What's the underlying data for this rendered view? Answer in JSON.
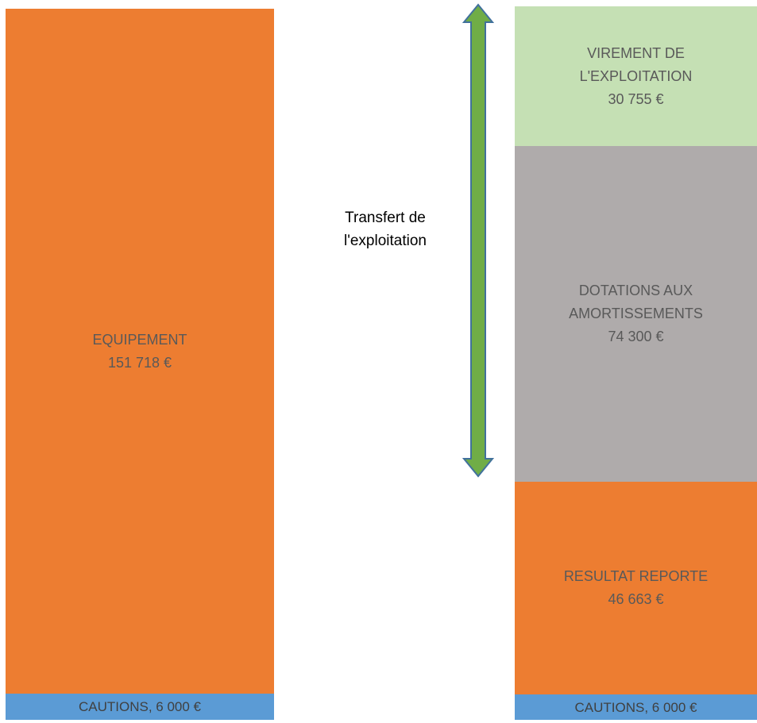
{
  "left_column": {
    "equipement": {
      "label": "EQUIPEMENT",
      "value": "151 718 €"
    },
    "cautions": {
      "text": "CAUTIONS, 6 000 €"
    }
  },
  "right_column": {
    "virement": {
      "line1": "VIREMENT DE",
      "line2": "L'EXPLOITATION",
      "value": "30 755 €"
    },
    "dotations": {
      "line1": "DOTATIONS AUX",
      "line2": "AMORTISSEMENTS",
      "value": "74 300 €"
    },
    "resultat": {
      "label": "RESULTAT REPORTE",
      "value": "46 663 €"
    },
    "cautions": {
      "text": "CAUTIONS, 6 000 €"
    }
  },
  "transfer": {
    "line1": "Transfert de",
    "line2": "l'exploitation"
  },
  "colors": {
    "orange": "#ed7d31",
    "blue": "#5b9bd5",
    "light_green": "#c5e0b4",
    "gray": "#afabab",
    "arrow_fill": "#70ad47",
    "arrow_stroke": "#41719c"
  }
}
